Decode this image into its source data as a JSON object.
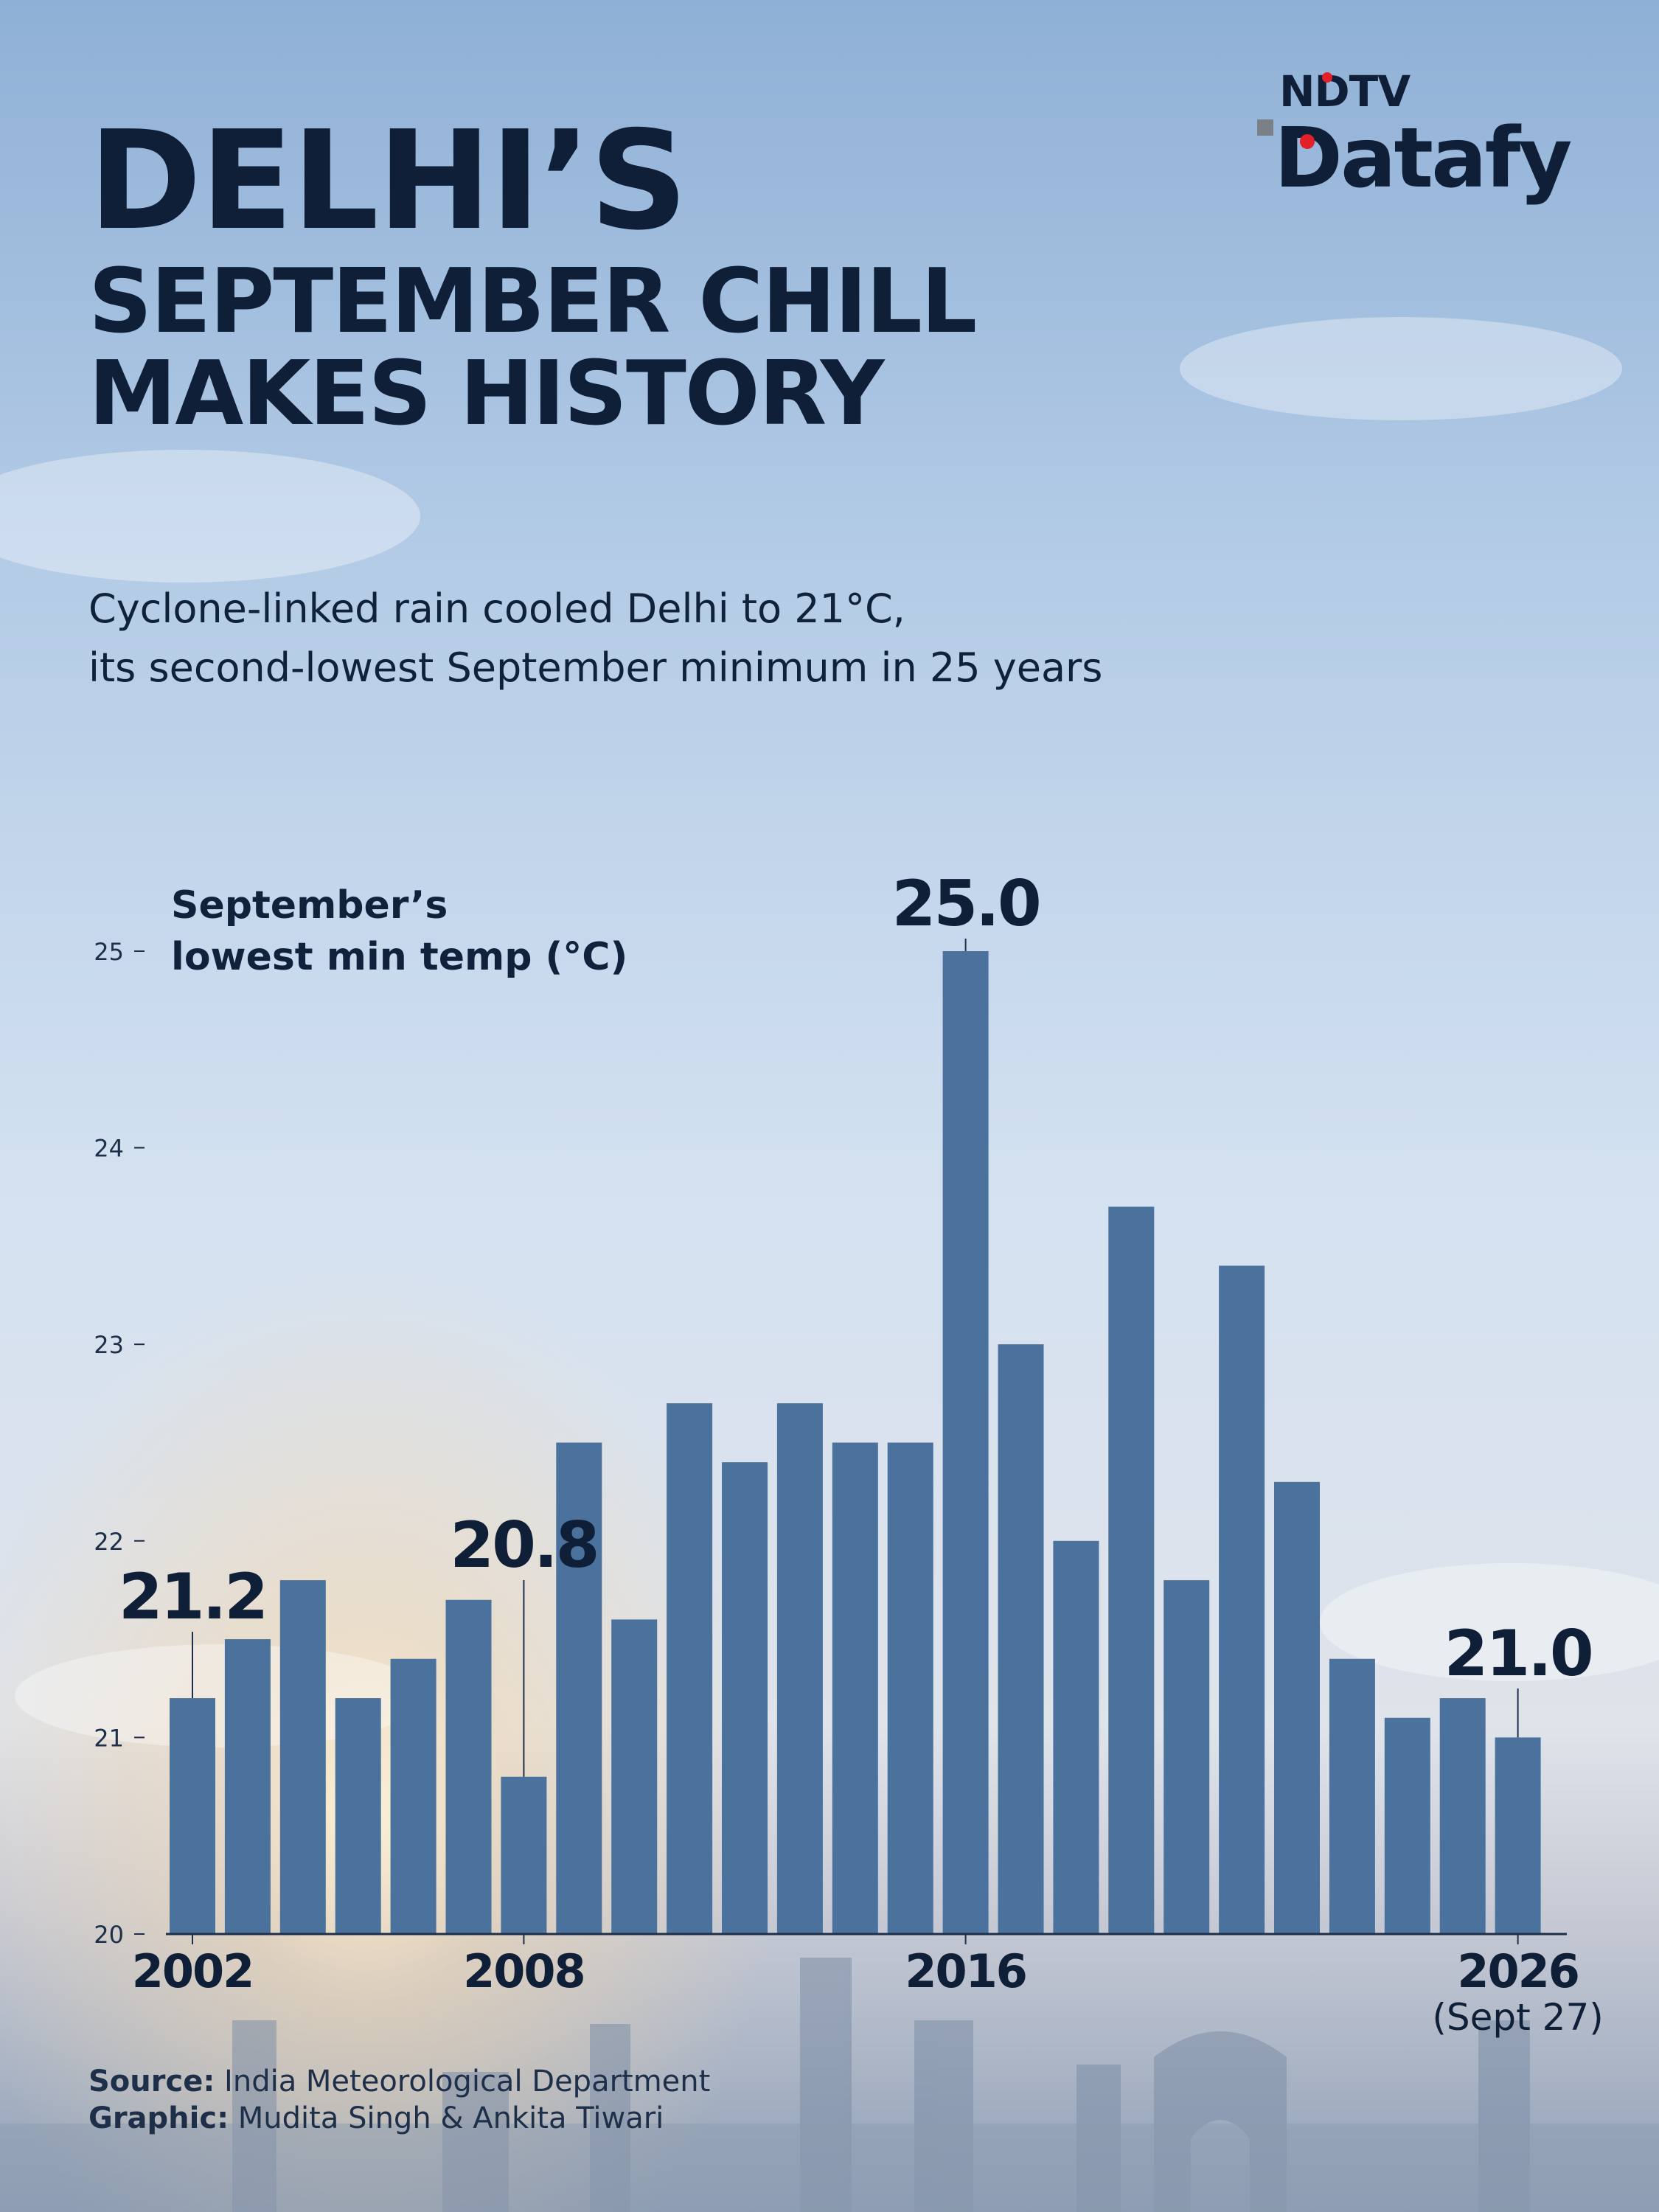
{
  "title": {
    "line1": "DELHI’S",
    "line2": "SEPTEMBER CHILL",
    "line3": "MAKES HISTORY"
  },
  "subtitle": {
    "line1": "Cyclone-linked rain cooled Delhi to 21°C,",
    "line2": "its second-lowest September minimum in 25 years"
  },
  "logo": {
    "top": "NDTV",
    "bottom": "Datafy"
  },
  "footer": {
    "source_label": "Source:",
    "source_text": " India Meteorological Department",
    "graphic_label": "Graphic:",
    "graphic_text": " Mudita Singh & Ankita Tiwari"
  },
  "colors": {
    "bar": "#4a729c",
    "text": "#0f1f38",
    "accent": "#e32028"
  },
  "chart_data": {
    "type": "bar",
    "ylabel_lines": [
      "September’s",
      "lowest min temp (°C)"
    ],
    "ylim": [
      20,
      25
    ],
    "yticks": [
      20,
      21,
      22,
      23,
      24,
      25
    ],
    "x": [
      2002,
      2003,
      2004,
      2005,
      2006,
      2007,
      2008,
      2009,
      2010,
      2011,
      2012,
      2013,
      2014,
      2015,
      2016,
      2017,
      2018,
      2019,
      2020,
      2021,
      2022,
      2023,
      2024,
      2025,
      2026
    ],
    "values": [
      21.2,
      21.5,
      21.8,
      21.2,
      21.4,
      21.7,
      20.8,
      22.5,
      21.6,
      22.7,
      22.4,
      22.7,
      22.5,
      22.5,
      25.0,
      23.0,
      22.0,
      23.7,
      21.8,
      23.4,
      22.3,
      21.4,
      21.1,
      21.2,
      21.0
    ],
    "xtick_labels": [
      {
        "x": 2002,
        "label": "2002",
        "sub": ""
      },
      {
        "x": 2008,
        "label": "2008",
        "sub": ""
      },
      {
        "x": 2016,
        "label": "2016",
        "sub": ""
      },
      {
        "x": 2026,
        "label": "2026",
        "sub": "(Sept 27)"
      }
    ],
    "annotations": [
      {
        "x": 2002,
        "label": "21.2"
      },
      {
        "x": 2008,
        "label": "20.8"
      },
      {
        "x": 2016,
        "label": "25.0"
      },
      {
        "x": 2026,
        "label": "21.0"
      }
    ],
    "grid": false
  }
}
